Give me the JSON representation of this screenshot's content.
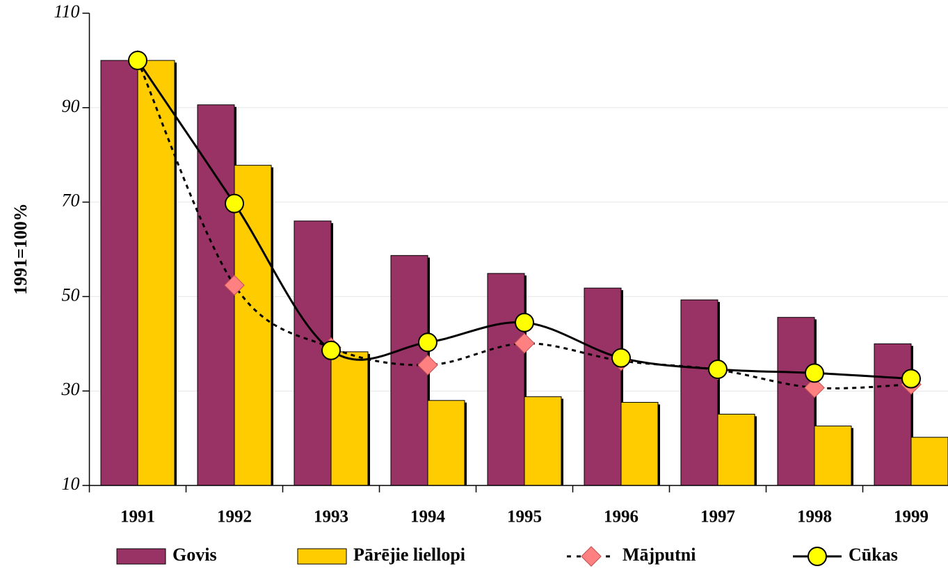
{
  "chart_data": {
    "type": "bar_line",
    "y_label": "1991=100%",
    "categories": [
      "1991",
      "1992",
      "1993",
      "1994",
      "1995",
      "1996",
      "1997",
      "1998",
      "1999"
    ],
    "series": [
      {
        "name": "Govis",
        "type": "bar",
        "color": "#993366",
        "values": [
          100,
          90.6,
          66,
          58.7,
          54.9,
          51.8,
          49.3,
          45.6,
          40
        ]
      },
      {
        "name": "Pārējie liellopi",
        "type": "bar",
        "color": "#ffcc00",
        "values": [
          100,
          77.8,
          38.3,
          28,
          28.8,
          27.6,
          25.1,
          22.6,
          20.2
        ]
      },
      {
        "name": "Mājputni",
        "type": "line",
        "color": "#000000",
        "marker_color": "#ff8080",
        "dashed": true,
        "values": [
          100,
          52.4,
          39.2,
          35.5,
          40.1,
          36.4,
          34.5,
          30.7,
          31.4
        ]
      },
      {
        "name": "Cūkas",
        "type": "line",
        "color": "#000000",
        "marker_color": "#ffff00",
        "dashed": false,
        "values": [
          100,
          69.7,
          38.6,
          40.3,
          44.5,
          37,
          34.6,
          33.8,
          32.6
        ]
      }
    ],
    "ylim": [
      10,
      110
    ],
    "yticks": [
      10,
      30,
      50,
      70,
      90,
      110
    ],
    "grid": true
  }
}
